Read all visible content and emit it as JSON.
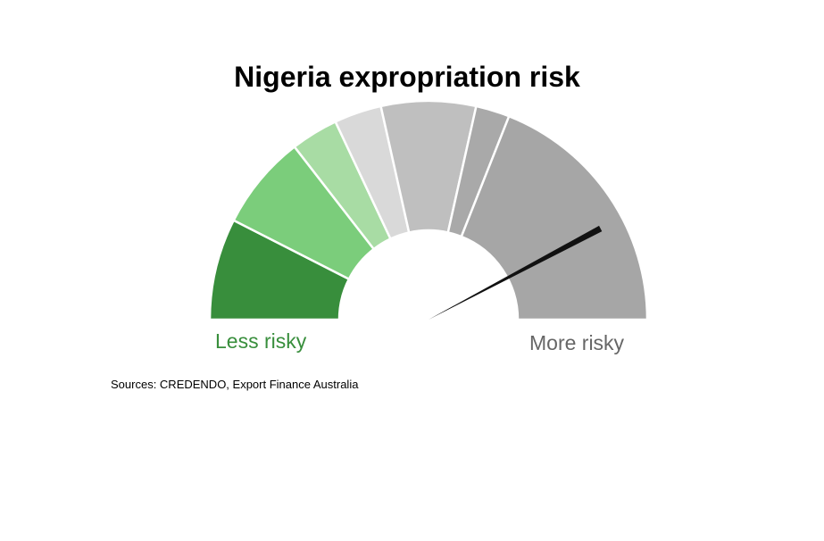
{
  "chart_data": {
    "type": "gauge",
    "title": "Nigeria expropriation risk",
    "segments": [
      {
        "span": 0.15,
        "color": "#388e3c"
      },
      {
        "span": 0.14,
        "color": "#7bcd7b"
      },
      {
        "span": 0.07,
        "color": "#a8dca4"
      },
      {
        "span": 0.07,
        "color": "#d9d9d9"
      },
      {
        "span": 0.14,
        "color": "#bfbfbf"
      },
      {
        "span": 0.05,
        "color": "#a9a9a9"
      },
      {
        "span": 0.38,
        "color": "#a6a6a6"
      }
    ],
    "needle_value": 0.845,
    "needle_color": "#111111",
    "left_label": "Less risky",
    "left_label_color": "#388e3c",
    "right_label": "More risky",
    "right_label_color": "#666666",
    "source": "Sources: CREDENDO, Export Finance Australia"
  }
}
